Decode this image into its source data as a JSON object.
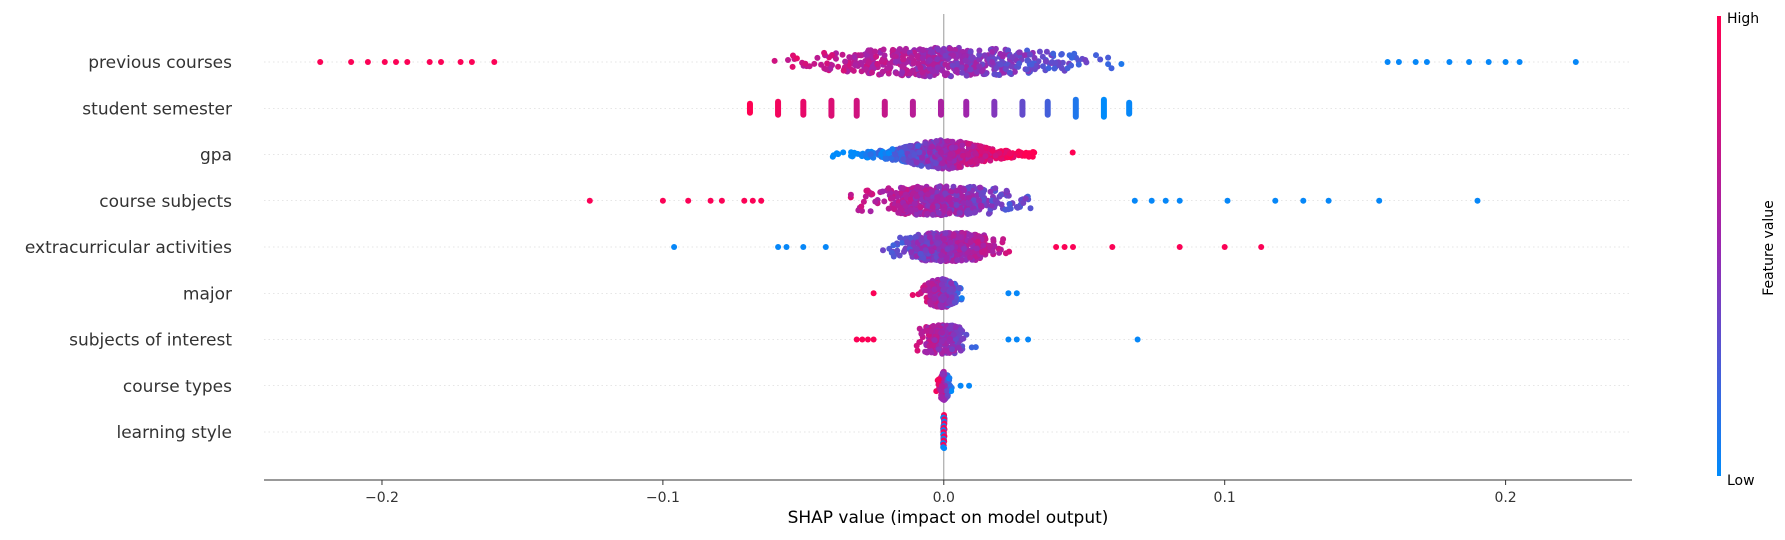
{
  "chart_data": {
    "type": "scatter",
    "subtype": "shap-beeswarm",
    "xlabel": "SHAP value (impact on model output)",
    "xlim": [
      -0.242,
      0.245
    ],
    "xticks": [
      {
        "value": -0.2,
        "label": "−0.2"
      },
      {
        "value": -0.1,
        "label": "−0.1"
      },
      {
        "value": 0.0,
        "label": "0.0"
      },
      {
        "value": 0.1,
        "label": "0.1"
      },
      {
        "value": 0.2,
        "label": "0.2"
      }
    ],
    "zero_line": true,
    "colorbar": {
      "label": "Feature value",
      "high_label": "High",
      "low_label": "Low",
      "high_color": "#ff0052",
      "mid_color": "#9b27b0",
      "low_color": "#008bfb"
    },
    "features": [
      {
        "name": "previous courses",
        "kind": "continuous",
        "range": [
          -0.222,
          0.225
        ],
        "center": 0.0,
        "spread": 0.055,
        "direction": -1,
        "points": 560,
        "outliers_neg": [
          -0.222,
          -0.211,
          -0.205,
          -0.199,
          -0.195,
          -0.191,
          -0.183,
          -0.179,
          -0.172,
          -0.168,
          -0.16
        ],
        "outliers_pos": [
          0.225,
          0.205,
          0.2,
          0.194,
          0.187,
          0.18,
          0.172,
          0.168,
          0.162,
          0.158
        ]
      },
      {
        "name": "student semester",
        "kind": "discrete",
        "values": [
          -0.069,
          -0.059,
          -0.05,
          -0.04,
          -0.031,
          -0.021,
          -0.011,
          -0.001,
          0.008,
          0.018,
          0.028,
          0.037,
          0.047,
          0.057,
          0.066
        ],
        "colors_t": [
          1.0,
          0.94,
          0.88,
          0.82,
          0.76,
          0.7,
          0.64,
          0.58,
          0.52,
          0.42,
          0.32,
          0.22,
          0.1,
          0.0,
          0.02
        ],
        "heights": [
          9,
          13,
          13,
          15,
          15,
          13,
          13,
          13,
          13,
          13,
          13,
          13,
          17,
          17,
          11
        ]
      },
      {
        "name": "gpa",
        "kind": "continuous",
        "range": [
          -0.062,
          0.058
        ],
        "center": 0.0,
        "spread": 0.035,
        "direction": 1,
        "points": 620,
        "outliers_neg": [],
        "outliers_pos": []
      },
      {
        "name": "course subjects",
        "kind": "continuous",
        "range": [
          -0.126,
          0.19
        ],
        "center": 0.0,
        "spread": 0.03,
        "direction": -1,
        "points": 520,
        "outliers_neg": [
          -0.126,
          -0.1,
          -0.091,
          -0.083,
          -0.079,
          -0.071,
          -0.068,
          -0.065
        ],
        "outliers_pos": [
          0.19,
          0.155,
          0.137,
          0.128,
          0.118,
          0.101,
          0.084,
          0.079,
          0.074,
          0.068
        ]
      },
      {
        "name": "extracurricular activities",
        "kind": "continuous",
        "range": [
          -0.096,
          0.113
        ],
        "center": 0.002,
        "spread": 0.02,
        "direction": 1,
        "points": 520,
        "outliers_neg": [
          -0.096,
          -0.059,
          -0.056,
          -0.05,
          -0.042
        ],
        "outliers_pos": [
          0.113,
          0.1,
          0.084,
          0.06,
          0.046,
          0.043,
          0.04
        ]
      },
      {
        "name": "major",
        "kind": "continuous",
        "range": [
          -0.025,
          0.026
        ],
        "center": -0.001,
        "spread": 0.008,
        "direction": -1,
        "points": 260,
        "outliers_neg": [
          -0.025
        ],
        "outliers_pos": [
          0.026,
          0.023
        ]
      },
      {
        "name": "subjects of interest",
        "kind": "continuous",
        "range": [
          -0.031,
          0.069
        ],
        "center": 0.0,
        "spread": 0.009,
        "direction": -1,
        "points": 260,
        "outliers_neg": [
          -0.031,
          -0.029,
          -0.027,
          -0.025
        ],
        "outliers_pos": [
          0.069,
          0.03,
          0.026,
          0.023
        ]
      },
      {
        "name": "course types",
        "kind": "continuous",
        "range": [
          -0.003,
          0.009
        ],
        "center": 0.0,
        "spread": 0.0025,
        "direction": -1,
        "points": 120,
        "outliers_neg": [],
        "outliers_pos": [
          0.009,
          0.006
        ]
      },
      {
        "name": "learning style",
        "kind": "stack",
        "value": 0.0,
        "height": 34
      }
    ]
  }
}
